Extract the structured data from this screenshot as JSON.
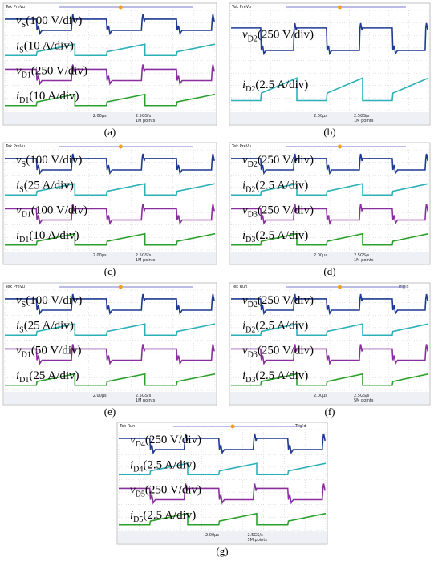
{
  "panels": [
    {
      "caption": "(a)",
      "header": "Tek PreVu",
      "timebase": "2.00μs",
      "rate": "2.5GS/s",
      "points": "1M points",
      "labels": [
        {
          "symbol": "v",
          "sub": "S",
          "scale": "(100 V/div)"
        },
        {
          "symbol": "i",
          "sub": "S",
          "scale": "(10 A/div)"
        },
        {
          "symbol": "v",
          "sub": "D1",
          "scale": "(250 V/div)"
        },
        {
          "symbol": "i",
          "sub": "D1",
          "scale": "(10 A/div)"
        }
      ]
    },
    {
      "caption": "(b)",
      "header": "Tek PreVu",
      "timebase": "2.00μs",
      "rate": "2.5GS/s",
      "points": "1M points",
      "labels": [
        {
          "symbol": "v",
          "sub": "D2",
          "scale": "(250 V/div)"
        },
        {
          "symbol": "i",
          "sub": "D2",
          "scale": "(2.5 A/div)"
        }
      ]
    },
    {
      "caption": "(c)",
      "header": "Tek PreVu",
      "timebase": "2.00μs",
      "rate": "2.5GS/s",
      "points": "1M points",
      "labels": [
        {
          "symbol": "v",
          "sub": "S",
          "scale": "(100 V/div)"
        },
        {
          "symbol": "i",
          "sub": "S",
          "scale": "(25 A/div)"
        },
        {
          "symbol": "v",
          "sub": "D1",
          "scale": "(100 V/div)"
        },
        {
          "symbol": "i",
          "sub": "D1",
          "scale": "(10 A/div)"
        }
      ]
    },
    {
      "caption": "(d)",
      "header": "Tek PreVu",
      "timebase": "2.00μs",
      "rate": "2.5GS/s",
      "points": "1M points",
      "labels": [
        {
          "symbol": "v",
          "sub": "D2",
          "scale": "(250 V/div)"
        },
        {
          "symbol": "i",
          "sub": "D2",
          "scale": "(2.5 A/div)"
        },
        {
          "symbol": "v",
          "sub": "D3",
          "scale": "(250 V/div)"
        },
        {
          "symbol": "i",
          "sub": "D3",
          "scale": "(2.5 A/div)"
        }
      ]
    },
    {
      "caption": "(e)",
      "header": "Tek PreVu",
      "timebase": "2.00μs",
      "rate": "2.5GS/s",
      "points": "1M points",
      "labels": [
        {
          "symbol": "v",
          "sub": "S",
          "scale": "(100 V/div)"
        },
        {
          "symbol": "i",
          "sub": "S",
          "scale": "(25 A/div)"
        },
        {
          "symbol": "v",
          "sub": "D1",
          "scale": "(50 V/div)"
        },
        {
          "symbol": "i",
          "sub": "D1",
          "scale": "(25 A/div)"
        }
      ]
    },
    {
      "caption": "(f)",
      "header": "Tek Run",
      "status": "Trig'd",
      "timebase": "2.00μs",
      "rate": "2.5GS/s",
      "points": "5M points",
      "labels": [
        {
          "symbol": "v",
          "sub": "D2",
          "scale": "(250 V/div)"
        },
        {
          "symbol": "i",
          "sub": "D2",
          "scale": "(2.5 A/div)"
        },
        {
          "symbol": "v",
          "sub": "D3",
          "scale": "(250 V/div)"
        },
        {
          "symbol": "i",
          "sub": "D3",
          "scale": "(2.5 A/div)"
        }
      ]
    },
    {
      "caption": "(g)",
      "header": "Tek Run",
      "status": "Trig'd",
      "timebase": "2.00μs",
      "rate": "2.5GS/s",
      "points": "5M points",
      "labels": [
        {
          "symbol": "v",
          "sub": "D4",
          "scale": "(250 V/div)"
        },
        {
          "symbol": "i",
          "sub": "D4",
          "scale": "(2.5 A/div)"
        },
        {
          "symbol": "v",
          "sub": "D5",
          "scale": "(250 V/div)"
        },
        {
          "symbol": "i",
          "sub": "D5",
          "scale": "(2.5 A/div)"
        }
      ]
    }
  ]
}
